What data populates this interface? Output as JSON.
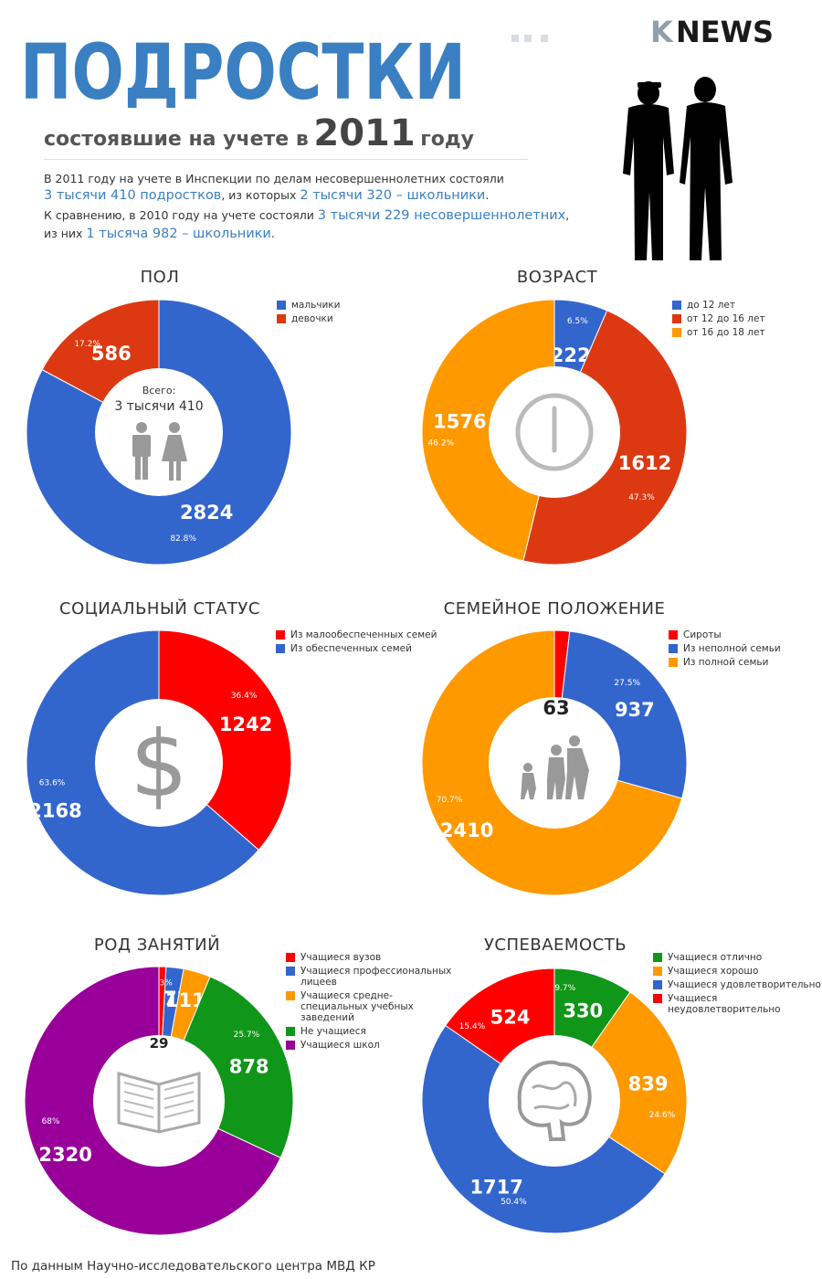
{
  "header": {
    "title": "ПОДРОСТКИ",
    "subtitle_pre": "состоявшие на учете в",
    "subtitle_year": "2011",
    "subtitle_post": "году",
    "logo_k": "K",
    "logo_news": "NEWS"
  },
  "intro": {
    "line1": "В 2011 году на учете в Инспекции по делам несовершеннолетних состояли",
    "line2_a": "3 тысячи 410 подростков",
    "line2_b": ", из которых ",
    "line2_c": "2 тысячи 320 – школьники",
    "line2_d": ".",
    "line3_a": "К сравнению, в 2010 году на учете состояли ",
    "line3_b": "3 тысячи 229 несовершеннолетних",
    "line3_c": ",",
    "line4_a": "из них ",
    "line4_b": "1 тысяча 982 – школьники",
    "line4_c": "."
  },
  "colors": {
    "blue": "#3366cc",
    "red": "#dc3912",
    "orange": "#ff9900",
    "green": "#109618",
    "purple": "#990099",
    "bright_red": "#ff0000",
    "title_blue": "#3a7fc1"
  },
  "chart_data": [
    {
      "id": "gender",
      "type": "pie",
      "title": "ПОЛ",
      "center_label": "Всего:",
      "center_value": "3 тысячи 410",
      "center_icon": "man-woman-icon",
      "series": [
        {
          "name": "мальчики",
          "value": 2824,
          "percent": "82.8%",
          "color": "#3366cc"
        },
        {
          "name": "девочки",
          "value": 586,
          "percent": "17.2%",
          "color": "#dc3912"
        }
      ]
    },
    {
      "id": "age",
      "type": "pie",
      "title": "ВОЗРАСТ",
      "center_icon": "clock-icon",
      "series": [
        {
          "name": "до 12 лет",
          "value": 222,
          "percent": "6.5%",
          "color": "#3366cc"
        },
        {
          "name": "от 12 до 16 лет",
          "value": 1612,
          "percent": "47.3%",
          "color": "#dc3912"
        },
        {
          "name": "от 16 до 18 лет",
          "value": 1576,
          "percent": "46.2%",
          "color": "#ff9900"
        }
      ]
    },
    {
      "id": "social",
      "type": "pie",
      "title": "СОЦИАЛЬНЫЙ СТАТУС",
      "center_icon": "dollar-icon",
      "series": [
        {
          "name": "Из малообеспеченных семей",
          "value": 1242,
          "percent": "36.4%",
          "color": "#ff0000"
        },
        {
          "name": "Из обеспеченных семей",
          "value": 2168,
          "percent": "63.6%",
          "color": "#3366cc"
        }
      ]
    },
    {
      "id": "family",
      "type": "pie",
      "title": "СЕМЕЙНОЕ ПОЛОЖЕНИЕ",
      "center_icon": "family-icon",
      "series": [
        {
          "name": "Сироты",
          "value": 63,
          "percent": "",
          "color": "#ff0000"
        },
        {
          "name": "Из неполной семьи",
          "value": 937,
          "percent": "27.5%",
          "color": "#3366cc"
        },
        {
          "name": "Из полной семьи",
          "value": 2410,
          "percent": "70.7%",
          "color": "#ff9900"
        }
      ]
    },
    {
      "id": "occupation",
      "type": "pie",
      "title": "РОД ЗАНЯТИЙ",
      "center_icon": "book-icon",
      "series": [
        {
          "name": "Учащиеся вузов",
          "value": 29,
          "percent": "",
          "color": "#ff0000"
        },
        {
          "name": "Учащиеся профессиональных лицеев",
          "value": 72,
          "percent": "",
          "color": "#3366cc"
        },
        {
          "name": "Учащиеся средне-специальных учебных заведений",
          "value": 111,
          "percent": "3.3%",
          "color": "#ff9900"
        },
        {
          "name": "Не учащиеся",
          "value": 878,
          "percent": "25.7%",
          "color": "#109618"
        },
        {
          "name": "Учащиеся школ",
          "value": 2320,
          "percent": "68%",
          "color": "#990099"
        }
      ]
    },
    {
      "id": "performance",
      "type": "pie",
      "title": "УСПЕВАЕМОСТЬ",
      "center_icon": "brain-icon",
      "series": [
        {
          "name": "Учащиеся отлично",
          "value": 330,
          "percent": "9.7%",
          "color": "#109618"
        },
        {
          "name": "Учащиеся хорошо",
          "value": 839,
          "percent": "24.6%",
          "color": "#ff9900"
        },
        {
          "name": "Учащиеся удовлетворительно",
          "value": 1717,
          "percent": "50.4%",
          "color": "#3366cc"
        },
        {
          "name": "Учащиеся неудовлетворительно",
          "value": 524,
          "percent": "15.4%",
          "color": "#ff0000"
        }
      ]
    }
  ],
  "footer": "По данным Научно-исследовательского центра МВД КР"
}
